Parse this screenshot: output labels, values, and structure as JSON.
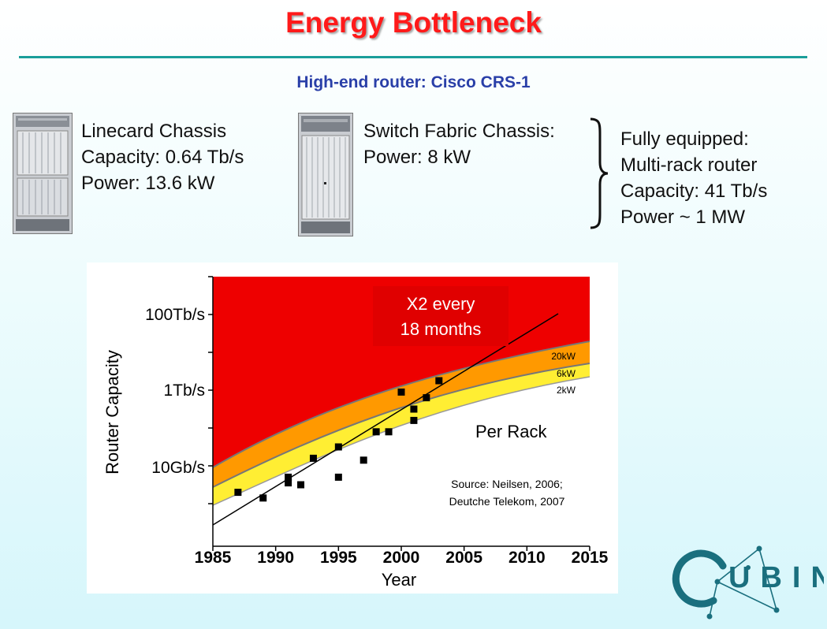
{
  "slide": {
    "title": "Energy Bottleneck",
    "subtitle": "High-end router: Cisco CRS-1"
  },
  "linecard": {
    "lines": [
      "Linecard Chassis",
      "Capacity: 0.64 Tb/s",
      "Power: 13.6 kW"
    ]
  },
  "switch_fabric": {
    "lines": [
      "Switch Fabric Chassis:",
      "Power: 8 kW"
    ]
  },
  "fully_equipped": {
    "lines": [
      "Fully equipped:",
      "Multi-rack router",
      "Capacity: 41 Tb/s",
      "Power ~ 1 MW"
    ]
  },
  "chart_data": {
    "type": "scatter",
    "title": "",
    "xlabel": "Year",
    "ylabel": "Router Capacity",
    "xlim": [
      1985,
      2015
    ],
    "x_ticks": [
      "1985",
      "1990",
      "1995",
      "2000",
      "2005",
      "2010",
      "2015"
    ],
    "y_tick_labels": [
      "100Tb/s",
      "1Tb/s",
      "10Gb/s"
    ],
    "y_scale": "log",
    "band_labels": [
      "20kW",
      "6kW",
      "2kW"
    ],
    "annotation_box": [
      "X2 every",
      "18 months"
    ],
    "per_rack_label": "Per Rack",
    "source": [
      "Source: Neilsen, 2006;",
      "Deutche Telekom, 2007"
    ],
    "colors": {
      "red_region": "#ee0000",
      "orange_band": "#ff9900",
      "yellow_band": "#ffee33"
    },
    "points_year_vs_log10_capacity_bps": [
      [
        1987,
        9.3
      ],
      [
        1989,
        9.15
      ],
      [
        1991,
        9.7
      ],
      [
        1991,
        9.55
      ],
      [
        1992,
        9.5
      ],
      [
        1993,
        10.2
      ],
      [
        1995,
        9.7
      ],
      [
        1995,
        10.5
      ],
      [
        1997,
        10.15
      ],
      [
        1998,
        10.9
      ],
      [
        1999,
        10.9
      ],
      [
        2000,
        11.95
      ],
      [
        2001,
        11.5
      ],
      [
        2001,
        11.2
      ],
      [
        2002,
        11.8
      ],
      [
        2003,
        12.25
      ]
    ]
  },
  "logo": {
    "text": "UBIN",
    "letter": "C"
  }
}
